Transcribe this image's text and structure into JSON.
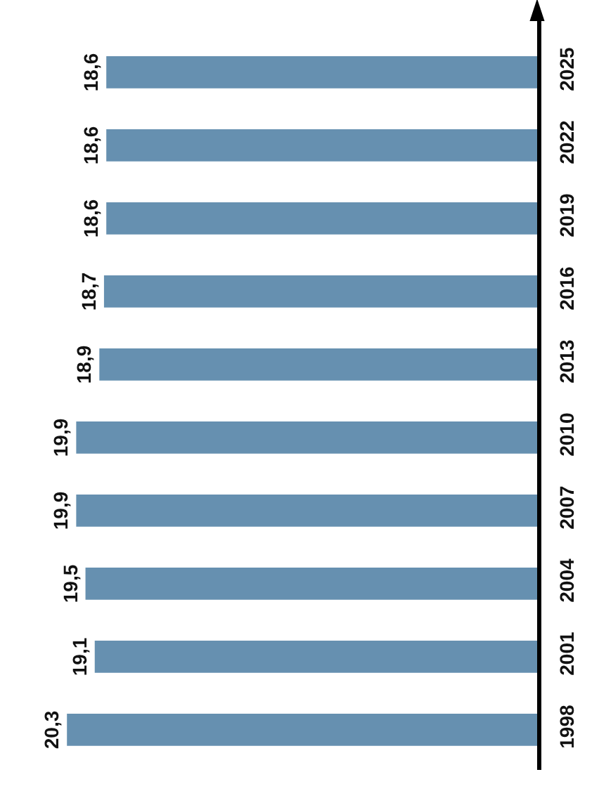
{
  "chart_data": {
    "type": "bar",
    "orientation": "horizontal",
    "categories": [
      "2025",
      "2022",
      "2019",
      "2016",
      "2013",
      "2010",
      "2007",
      "2004",
      "2001",
      "1998"
    ],
    "values": [
      18.6,
      18.6,
      18.6,
      18.7,
      18.9,
      19.9,
      19.9,
      19.5,
      19.1,
      20.3
    ],
    "value_labels": [
      "18,6",
      "18,6",
      "18,6",
      "18,7",
      "18,9",
      "19,9",
      "19,9",
      "19,5",
      "19,1",
      "20,3"
    ],
    "color": "#6690b0",
    "tick_labels": "y"
  }
}
